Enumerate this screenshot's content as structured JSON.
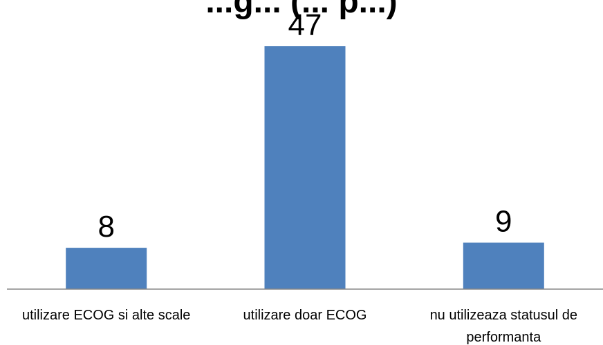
{
  "chart_data": {
    "type": "bar",
    "title": "...g... (... p...)",
    "categories": [
      [
        "utilizare ECOG si alte scale"
      ],
      [
        "utilizare doar ECOG"
      ],
      [
        "nu utilizeaza statusul de",
        "performanta"
      ]
    ],
    "values": [
      8,
      47,
      9
    ],
    "ylim": [
      0,
      52
    ],
    "grid": false,
    "legend": "none",
    "colors": {
      "bar": "#4F81BD",
      "axis": "#868686"
    }
  }
}
